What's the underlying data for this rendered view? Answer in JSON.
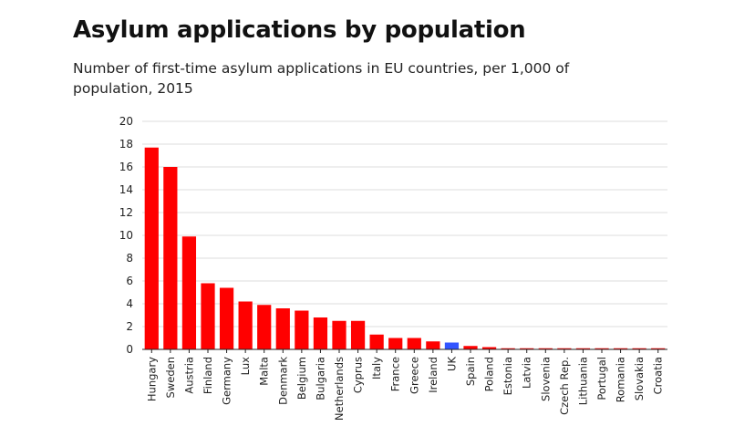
{
  "chart_data": {
    "type": "bar",
    "title": "Asylum applications by population",
    "subtitle": "Number of first-time asylum applications in EU countries, per 1,000 of population, 2015",
    "xlabel": "",
    "ylabel": "",
    "ylim": [
      0,
      20
    ],
    "yticks": [
      0,
      2,
      4,
      6,
      8,
      10,
      12,
      14,
      16,
      18,
      20
    ],
    "grid": true,
    "categories": [
      "Hungary",
      "Sweden",
      "Austria",
      "Finland",
      "Germany",
      "Lux",
      "Malta",
      "Denmark",
      "Belgium",
      "Bulgaria",
      "Netherlands",
      "Cyprus",
      "Italy",
      "France",
      "Greece",
      "Ireland",
      "UK",
      "Spain",
      "Poland",
      "Estonia",
      "Latvia",
      "Slovenia",
      "Czech Rep.",
      "Lithuania",
      "Portugal",
      "Romania",
      "Slovakia",
      "Croatia"
    ],
    "values": [
      17.7,
      16.0,
      9.9,
      5.8,
      5.4,
      4.2,
      3.9,
      3.6,
      3.4,
      2.8,
      2.5,
      2.5,
      1.3,
      1.0,
      1.0,
      0.7,
      0.6,
      0.3,
      0.2,
      0.1,
      0.1,
      0.1,
      0.1,
      0.1,
      0.1,
      0.1,
      0.1,
      0.1
    ],
    "colors": {
      "default": "#ff0000",
      "highlight": "#3355ff",
      "grid": "#dddddd",
      "axis": "#222222"
    },
    "highlight_category": "UK"
  }
}
